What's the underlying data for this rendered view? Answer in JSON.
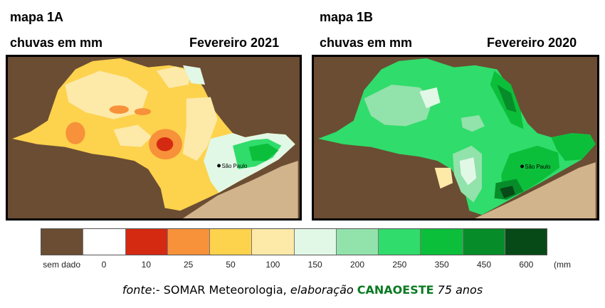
{
  "maps": [
    {
      "title": "mapa 1A",
      "subtitle": "chuvas em mm",
      "period": "Fevereiro 2021",
      "city_label": "São Paulo"
    },
    {
      "title": "mapa 1B",
      "subtitle": "chuvas em mm",
      "period": "Fevereiro 2020",
      "city_label": "São Paulo"
    }
  ],
  "legend": {
    "unit": "(mm",
    "items": [
      {
        "label": "sem dado",
        "color": "#6b4d33"
      },
      {
        "label": "0",
        "color": "#ffffff"
      },
      {
        "label": "10",
        "color": "#d42a12"
      },
      {
        "label": "25",
        "color": "#f7913a"
      },
      {
        "label": "50",
        "color": "#fdd24d"
      },
      {
        "label": "100",
        "color": "#fde9a8"
      },
      {
        "label": "150",
        "color": "#e2f8e6"
      },
      {
        "label": "200",
        "color": "#92e2ab"
      },
      {
        "label": "250",
        "color": "#30dc6b"
      },
      {
        "label": "350",
        "color": "#0cbf3a"
      },
      {
        "label": "450",
        "color": "#078c2a"
      },
      {
        "label": "600",
        "color": "#074a17"
      }
    ]
  },
  "source": {
    "prefix": "fonte",
    "middle": ":- SOMAR Meteorologia, ",
    "elab": "elaboração",
    "brand": "CANAOESTE",
    "suffix": "75 anos"
  }
}
